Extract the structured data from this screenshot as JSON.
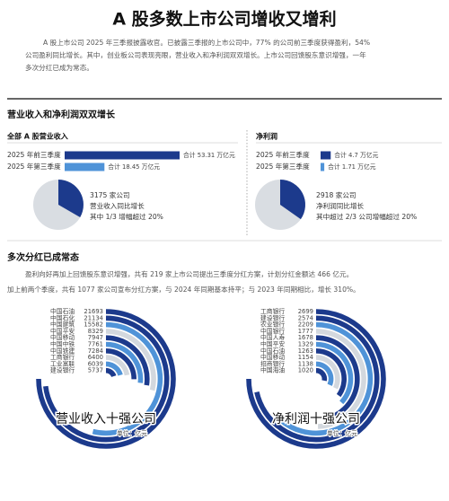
{
  "title": "A 股多数上市公司增收又增利",
  "intro": [
    "A 股上市公司 2025 年三季报披露收官。已披露三季报的上市公司中，77% 的公司前三季度获得盈利，54%",
    "公司盈利同比增长。其中，创业板公司表现亮眼，营业收入和净利润双双增长。上市公司回馈股东意识增强，一年",
    "多次分红已成为常态。"
  ],
  "section1": {
    "heading": "营业收入和净利润双双增长",
    "colors": [
      "#1c3a8c",
      "#4f93d8"
    ],
    "revenue": {
      "title": "全部 A 股营业收入",
      "bars": [
        {
          "label": "2025 年前三季度",
          "value": 53.31,
          "value_label": "合计 53.31 万亿元"
        },
        {
          "label": "2025 年第三季度",
          "value": 18.45,
          "value_label": "合计 18.45 万亿元"
        }
      ],
      "pie_text": [
        "3175 家公司",
        "营业收入同比增长",
        "其中 1/3 增幅超过 20%"
      ]
    },
    "profit": {
      "title": "净利润",
      "bars": [
        {
          "label": "2025 年前三季度",
          "value": 4.7,
          "value_label": "合计 4.7 万亿元"
        },
        {
          "label": "2025 年第三季度",
          "value": 1.71,
          "value_label": "合计 1.71 万亿元"
        }
      ],
      "pie_text": [
        "2918 家公司",
        "净利润同比增长",
        "其中超过 2/3 公司增幅超过 20%"
      ]
    }
  },
  "section2": {
    "heading": "多次分红已成常态",
    "text": [
      "盈利向好再加上回馈股东意识增强，共有 219 家上市公司提出三季度分红方案，计划分红金额达 466 亿元。",
      "加上前两个季度，共有 1077 家公司宣布分红方案，与 2024 年同期基本持平；与 2023 年同期相比，增长 310%。"
    ],
    "revenue_top10": {
      "title": "营业收入十强公司",
      "unit": "单位：亿元",
      "companies": [
        "中国石油",
        "中国石化",
        "中国建筑",
        "中国平安",
        "中国移动",
        "中国中铁",
        "中国铁建",
        "工商银行",
        "工业富联",
        "建设银行"
      ],
      "values": [
        21693,
        21134,
        15582,
        8329,
        7947,
        7761,
        7284,
        6400,
        6039,
        5737
      ],
      "colors": [
        "#1c3a8c",
        "#1c3a8c",
        "#4f93d8",
        "#d3d8de",
        "#1c3a8c",
        "#4f93d8",
        "#1c3a8c",
        "#d3d8de",
        "#4f93d8",
        "#1c3a8c"
      ]
    },
    "profit_top10": {
      "title": "净利润十强公司",
      "unit": "单位：亿元",
      "companies": [
        "工商银行",
        "建设银行",
        "农业银行",
        "中国银行",
        "中国人寿",
        "中国平安",
        "中国石油",
        "中国移动",
        "招商银行",
        "中国海油"
      ],
      "values": [
        2699,
        2574,
        2209,
        1777,
        1678,
        1329,
        1263,
        1154,
        1138,
        1020
      ],
      "colors": [
        "#1c3a8c",
        "#1c3a8c",
        "#4f93d8",
        "#d3d8de",
        "#1c3a8c",
        "#4f93d8",
        "#1c3a8c",
        "#d3d8de",
        "#4f93d8",
        "#1c3a8c"
      ]
    }
  }
}
